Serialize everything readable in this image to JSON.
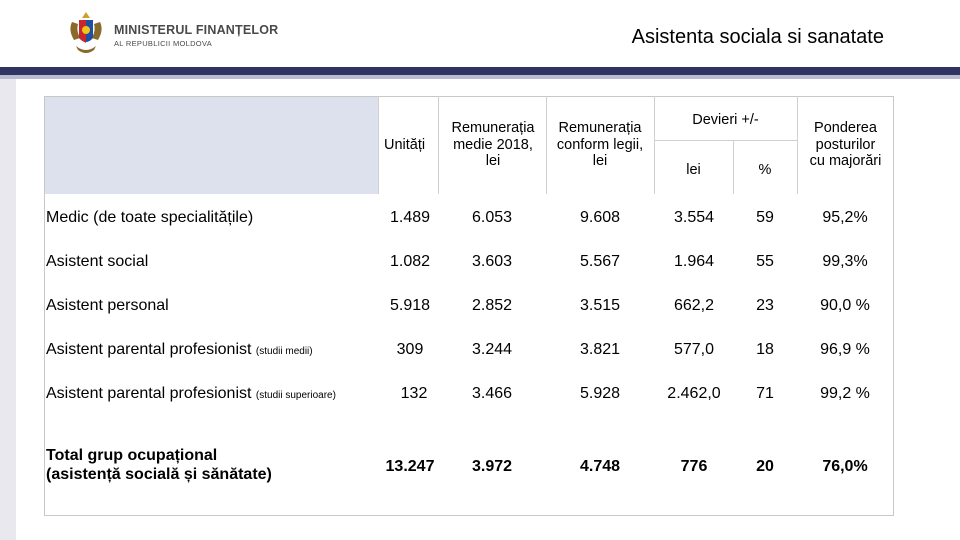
{
  "logo": {
    "line1": "MINISTERUL FINANȚELOR",
    "line2": "AL REPUBLICII MOLDOVA",
    "icon": "coat-of-arms-icon"
  },
  "title": "Asistenta sociala si sanatate",
  "table": {
    "headers": {
      "units": "Unități",
      "rem2018_l1": "Remunerația",
      "rem2018_l2": "medie 2018,",
      "rem2018_l3": "lei",
      "remlaw_l1": "Remunerația",
      "remlaw_l2": "conform legii,",
      "remlaw_l3": "lei",
      "dev": "Devieri +/-",
      "dev_lei": "lei",
      "dev_pct": "%",
      "share_l1": "Ponderea",
      "share_l2": "posturilor",
      "share_l3": "cu majorări"
    },
    "rows": [
      {
        "label": "Medic (de toate specialitățile)",
        "note": "",
        "units": "1.489",
        "rem2018": "6.053",
        "remlaw": "9.608",
        "dev_lei": "3.554",
        "dev_pct": "59",
        "share": "95,2%"
      },
      {
        "label": "Asistent social",
        "note": "",
        "units": "1.082",
        "rem2018": "3.603",
        "remlaw": "5.567",
        "dev_lei": "1.964",
        "dev_pct": "55",
        "share": "99,3%"
      },
      {
        "label": "Asistent personal",
        "note": "",
        "units": "5.918",
        "rem2018": "2.852",
        "remlaw": "3.515",
        "dev_lei": "662,2",
        "dev_pct": "23",
        "share": "90,0 %"
      },
      {
        "label": "Asistent parental profesionist",
        "note": "(studii medii)",
        "units": "309",
        "rem2018": "3.244",
        "remlaw": "3.821",
        "dev_lei": "577,0",
        "dev_pct": "18",
        "share": "96,9 %"
      },
      {
        "label": "Asistent parental profesionist",
        "note": "(studii superioare)",
        "units": "132",
        "rem2018": "3.466",
        "remlaw": "5.928",
        "dev_lei": "2.462,0",
        "dev_pct": "71",
        "share": "99,2 %"
      }
    ],
    "total": {
      "label_l1": "Total grup ocupațional",
      "label_l2": "(asistență socială și sănătate)",
      "units": "13.247",
      "rem2018": "3.972",
      "remlaw": "4.748",
      "dev_lei": "776",
      "dev_pct": "20",
      "share": "76,0%"
    }
  },
  "colors": {
    "band": "#2f3462",
    "header_bg": "#dde1ee"
  }
}
